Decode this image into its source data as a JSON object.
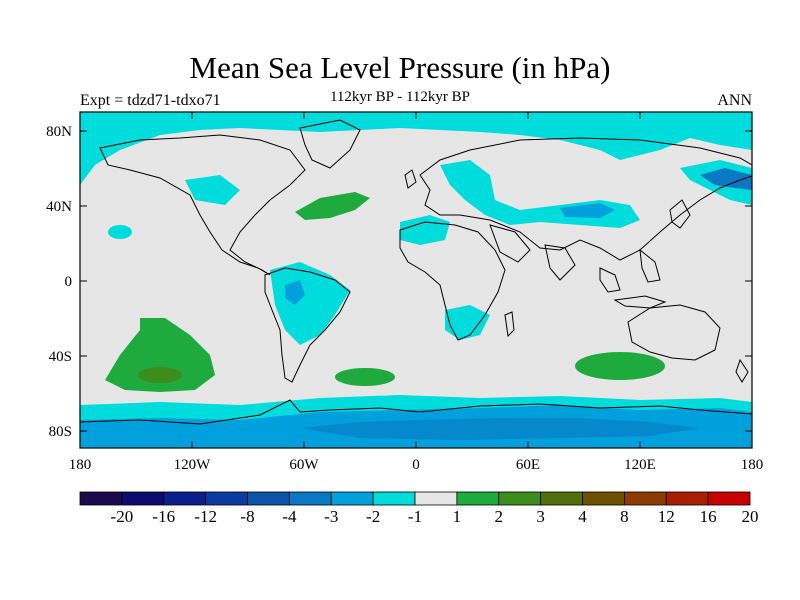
{
  "title": "Mean Sea Level Pressure (in hPa)",
  "subtitle_left": "Expt = tdzd71-tdxo71",
  "subtitle_center": "112kyr BP - 112kyr BP",
  "subtitle_right": "ANN",
  "x_ticks": [
    "180",
    "120W",
    "60W",
    "0",
    "60E",
    "120E",
    "180"
  ],
  "y_ticks": [
    "80N",
    "40N",
    "0",
    "40S",
    "80S"
  ],
  "colorbar": {
    "colors": [
      "#1a0a4e",
      "#0c0c6e",
      "#0a1e8c",
      "#0a3ca0",
      "#0a55aa",
      "#0a78c3",
      "#00a0dc",
      "#00dcdc",
      "#e6e6e6",
      "#1eaa3c",
      "#3c8c1e",
      "#506e0a",
      "#6e5000",
      "#8c3c00",
      "#aa1e00",
      "#c80000"
    ],
    "labels": [
      "-20",
      "-16",
      "-12",
      "-8",
      "-4",
      "-3",
      "-2",
      "-1",
      "1",
      "2",
      "3",
      "4",
      "8",
      "12",
      "16",
      "20"
    ]
  },
  "colors": {
    "ocean_neutral": "#e6e6e6",
    "neg1": "#00dcdc",
    "neg2": "#00a0dc",
    "neg3": "#0a78c3",
    "pos1": "#1eaa3c",
    "pos2": "#3c8c1e"
  }
}
